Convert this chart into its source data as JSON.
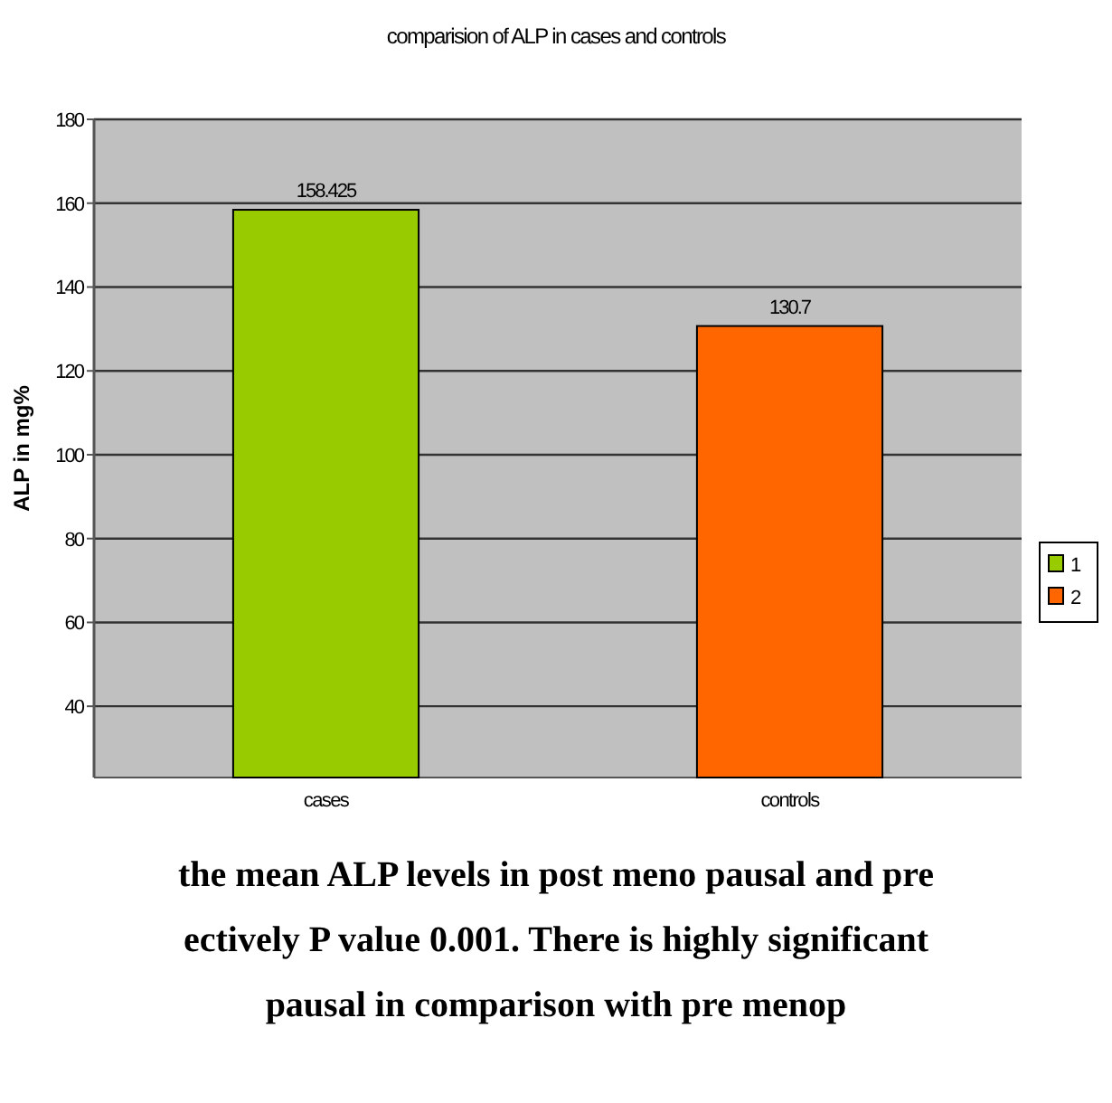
{
  "chart_data": {
    "type": "bar",
    "title": "comparision of ALP in cases and controls",
    "ylabel": "ALP in mg%",
    "categories": [
      "cases",
      "controls"
    ],
    "series": [
      {
        "name": "1",
        "color": "#99cc00",
        "values": [
          158.425,
          null
        ]
      },
      {
        "name": "2",
        "color": "#ff6600",
        "values": [
          null,
          130.7
        ]
      }
    ],
    "ylim": [
      23,
      180
    ],
    "yticks": [
      40,
      60,
      80,
      100,
      120,
      140,
      160,
      180
    ],
    "grid": "y",
    "legend": "right",
    "data_labels": true,
    "annotations": [
      "the mean ALP levels in post meno pausal and pre",
      "ectively P value 0.001.  There is highly significant",
      "pausal in comparison with pre menop"
    ]
  }
}
